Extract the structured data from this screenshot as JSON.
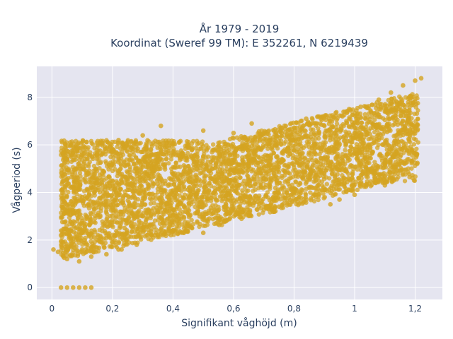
{
  "chart_data": {
    "type": "scatter",
    "title_lines": [
      "År 1979 - 2019",
      "Koordinat (Sweref 99 TM): E 352261, N 6219439"
    ],
    "xlabel": "Signifikant våghöjd (m)",
    "ylabel": "Vågperiod (s)",
    "xlim": [
      -0.05,
      1.29
    ],
    "ylim": [
      -0.5,
      9.3
    ],
    "x_ticks": [
      0,
      0.2,
      0.4,
      0.6,
      0.8,
      1,
      1.2
    ],
    "x_tick_labels": [
      "0",
      "0,2",
      "0,4",
      "0,6",
      "0,8",
      "1",
      "1,2"
    ],
    "y_ticks": [
      0,
      2,
      4,
      6,
      8
    ],
    "y_tick_labels": [
      "0",
      "2",
      "4",
      "6",
      "8"
    ],
    "grid": true,
    "legend": "none",
    "marker_color": "#d4a421",
    "background_color": "#e5e5f0",
    "series": [
      {
        "values_description_free": true,
        "points": [
          [
            0.03,
            0
          ],
          [
            0.05,
            0
          ],
          [
            0.07,
            0
          ],
          [
            0.09,
            0
          ],
          [
            0.11,
            0
          ],
          [
            0.13,
            0
          ],
          [
            0.005,
            1.6
          ],
          [
            0.02,
            1.5
          ],
          [
            0.03,
            2.2
          ],
          [
            0.04,
            3.1
          ],
          [
            0.04,
            4.5
          ],
          [
            0.05,
            5.4
          ],
          [
            0.05,
            1.2
          ],
          [
            0.06,
            2.4
          ],
          [
            0.07,
            3.4
          ],
          [
            0.08,
            4.2
          ],
          [
            0.08,
            5.0
          ],
          [
            0.09,
            1.1
          ],
          [
            0.1,
            1.6
          ],
          [
            0.1,
            2.8
          ],
          [
            0.1,
            3.8
          ],
          [
            0.11,
            5.9
          ],
          [
            0.12,
            4.8
          ],
          [
            0.13,
            1.3
          ],
          [
            0.14,
            2.1
          ],
          [
            0.14,
            3.3
          ],
          [
            0.15,
            4.4
          ],
          [
            0.15,
            5.6
          ],
          [
            0.16,
            6.1
          ],
          [
            0.18,
            1.4
          ],
          [
            0.18,
            2.6
          ],
          [
            0.2,
            3.6
          ],
          [
            0.2,
            5.2
          ],
          [
            0.22,
            1.6
          ],
          [
            0.22,
            6.2
          ],
          [
            0.24,
            2.5
          ],
          [
            0.25,
            4.1
          ],
          [
            0.26,
            5.8
          ],
          [
            0.28,
            1.8
          ],
          [
            0.3,
            3.0
          ],
          [
            0.3,
            6.4
          ],
          [
            0.32,
            4.6
          ],
          [
            0.34,
            2.2
          ],
          [
            0.35,
            5.5
          ],
          [
            0.36,
            6.8
          ],
          [
            0.38,
            3.2
          ],
          [
            0.4,
            2.4
          ],
          [
            0.4,
            4.8
          ],
          [
            0.42,
            6.1
          ],
          [
            0.45,
            2.6
          ],
          [
            0.46,
            3.9
          ],
          [
            0.48,
            5.3
          ],
          [
            0.5,
            6.6
          ],
          [
            0.52,
            2.9
          ],
          [
            0.54,
            4.5
          ],
          [
            0.55,
            5.7
          ],
          [
            0.58,
            3.1
          ],
          [
            0.6,
            4.9
          ],
          [
            0.6,
            6.5
          ],
          [
            0.62,
            3.4
          ],
          [
            0.65,
            5.1
          ],
          [
            0.66,
            6.9
          ],
          [
            0.68,
            3.6
          ],
          [
            0.7,
            4.6
          ],
          [
            0.72,
            6.2
          ],
          [
            0.74,
            3.8
          ],
          [
            0.76,
            5.4
          ],
          [
            0.78,
            6.6
          ],
          [
            0.8,
            4.0
          ],
          [
            0.82,
            5.6
          ],
          [
            0.84,
            7.1
          ],
          [
            0.86,
            4.2
          ],
          [
            0.88,
            5.9
          ],
          [
            0.9,
            6.8
          ],
          [
            0.92,
            3.5
          ],
          [
            0.94,
            6.1
          ],
          [
            0.96,
            7.2
          ],
          [
            0.98,
            4.6
          ],
          [
            1.0,
            6.5
          ],
          [
            1.02,
            7.6
          ],
          [
            1.04,
            5.4
          ],
          [
            1.06,
            6.9
          ],
          [
            1.08,
            7.9
          ],
          [
            1.1,
            7.4
          ],
          [
            1.12,
            8.2
          ],
          [
            1.14,
            7.7
          ],
          [
            1.16,
            8.5
          ],
          [
            1.18,
            8.0
          ],
          [
            1.2,
            8.7
          ],
          [
            1.22,
            8.8
          ],
          [
            1.1,
            4.3
          ],
          [
            1.07,
            4.4
          ],
          [
            1.0,
            3.9
          ],
          [
            0.95,
            3.7
          ],
          [
            0.75,
            3.4
          ],
          [
            0.5,
            2.3
          ],
          [
            0.23,
            1.6
          ]
        ]
      }
    ]
  },
  "colors": {
    "marker": "#d4a421",
    "plot_bg": "#e5e5f0",
    "grid": "#ffffff",
    "text": "#2a3f5f"
  }
}
